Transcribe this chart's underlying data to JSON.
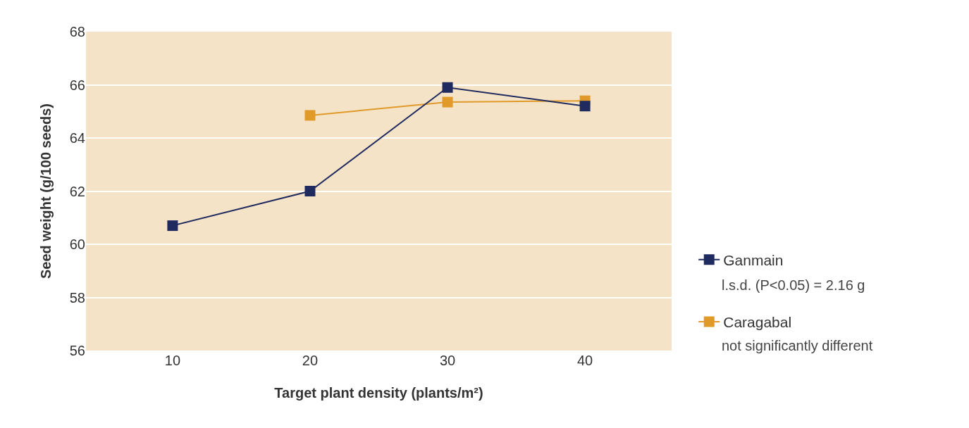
{
  "chart_data": {
    "type": "line",
    "xlabel": "Target plant density (plants/m²)",
    "ylabel": "Seed weight (g/100 seeds)",
    "x": [
      10,
      20,
      30,
      40
    ],
    "series": [
      {
        "name": "Ganmain",
        "color": "#1f2a5e",
        "values": [
          60.7,
          62.0,
          65.9,
          65.2
        ]
      },
      {
        "name": "Caragabal",
        "color": "#e09a2a",
        "values": [
          null,
          64.85,
          65.35,
          65.4
        ]
      }
    ],
    "xlim": [
      3.7,
      46.3
    ],
    "xticks": [
      10,
      20,
      30,
      40
    ],
    "ylim": [
      56,
      68
    ],
    "yticks": [
      56,
      58,
      60,
      62,
      64,
      66,
      68
    ],
    "grid": "y",
    "legend": "right",
    "marker": "square",
    "line_style": "solid",
    "annotations": [
      "l.s.d. (P<0.05) = 2.16 g",
      "not significantly different"
    ]
  }
}
